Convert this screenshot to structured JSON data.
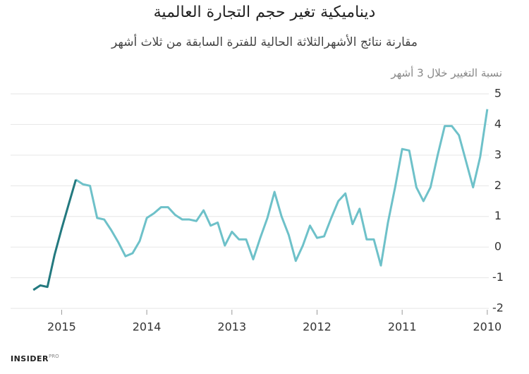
{
  "chart_data": {
    "type": "line",
    "title": "ديناميكية تغير حجم التجارة العالمية",
    "subtitle": "مقارنة نتائج الأشهرالثلاثة الحالية للفترة السابقة من ثلاث أشهر",
    "y_label": "نسبة التغيير خلال 3 أشهر",
    "logo": "INSIDER",
    "logo_sup": "PRO",
    "x": [
      2010.0,
      2010.083,
      2010.167,
      2010.25,
      2010.333,
      2010.417,
      2010.5,
      2010.583,
      2010.667,
      2010.75,
      2010.833,
      2010.917,
      2011.0,
      2011.083,
      2011.167,
      2011.25,
      2011.333,
      2011.417,
      2011.5,
      2011.583,
      2011.667,
      2011.75,
      2011.833,
      2011.917,
      2012.0,
      2012.083,
      2012.167,
      2012.25,
      2012.333,
      2012.417,
      2012.5,
      2012.583,
      2012.667,
      2012.75,
      2012.833,
      2012.917,
      2013.0,
      2013.083,
      2013.167,
      2013.25,
      2013.333,
      2013.417,
      2013.5,
      2013.583,
      2013.667,
      2013.75,
      2013.833,
      2013.917,
      2014.0,
      2014.083,
      2014.167,
      2014.25,
      2014.333,
      2014.417,
      2014.5,
      2014.583,
      2014.667,
      2014.75,
      2014.833,
      2014.917,
      2015.0,
      2015.083,
      2015.167,
      2015.25,
      2015.333
    ],
    "series": [
      {
        "color": "#6ec1c9",
        "values": [
          4.5,
          2.95,
          1.95,
          2.8,
          3.65,
          3.95,
          3.95,
          3.0,
          1.95,
          1.5,
          1.95,
          3.15,
          3.2,
          1.95,
          0.8,
          -0.6,
          0.25,
          0.25,
          1.25,
          0.75,
          1.75,
          1.5,
          0.95,
          0.35,
          0.3,
          0.7,
          0.05,
          -0.45,
          0.4,
          1.0,
          1.8,
          0.95,
          0.3,
          -0.4,
          0.25,
          0.25,
          0.5,
          0.05,
          0.8,
          0.7,
          1.2,
          0.85,
          0.9,
          0.9,
          1.05,
          1.3,
          1.3,
          1.1,
          0.95,
          0.2,
          -0.2,
          -0.3,
          0.15,
          0.55,
          0.9,
          0.95,
          2.0,
          2.05,
          2.2,
          null,
          null,
          null,
          null,
          null,
          null
        ]
      },
      {
        "color": "#23797f",
        "values": [
          null,
          null,
          null,
          null,
          null,
          null,
          null,
          null,
          null,
          null,
          null,
          null,
          null,
          null,
          null,
          null,
          null,
          null,
          null,
          null,
          null,
          null,
          null,
          null,
          null,
          null,
          null,
          null,
          null,
          null,
          null,
          null,
          null,
          null,
          null,
          null,
          null,
          null,
          null,
          null,
          null,
          null,
          null,
          null,
          null,
          null,
          null,
          null,
          null,
          null,
          null,
          null,
          null,
          null,
          null,
          null,
          null,
          null,
          2.2,
          1.4,
          0.6,
          -0.25,
          -1.3,
          -1.25,
          -1.4
        ]
      }
    ],
    "xlim": [
      2015.6,
      2009.8
    ],
    "xticks": [
      2015,
      2014,
      2013,
      2012,
      2011,
      2010
    ],
    "ylim": [
      -2,
      5
    ],
    "yticks": [
      -2,
      -1,
      0,
      1,
      2,
      3,
      4,
      5
    ],
    "grid": true
  }
}
